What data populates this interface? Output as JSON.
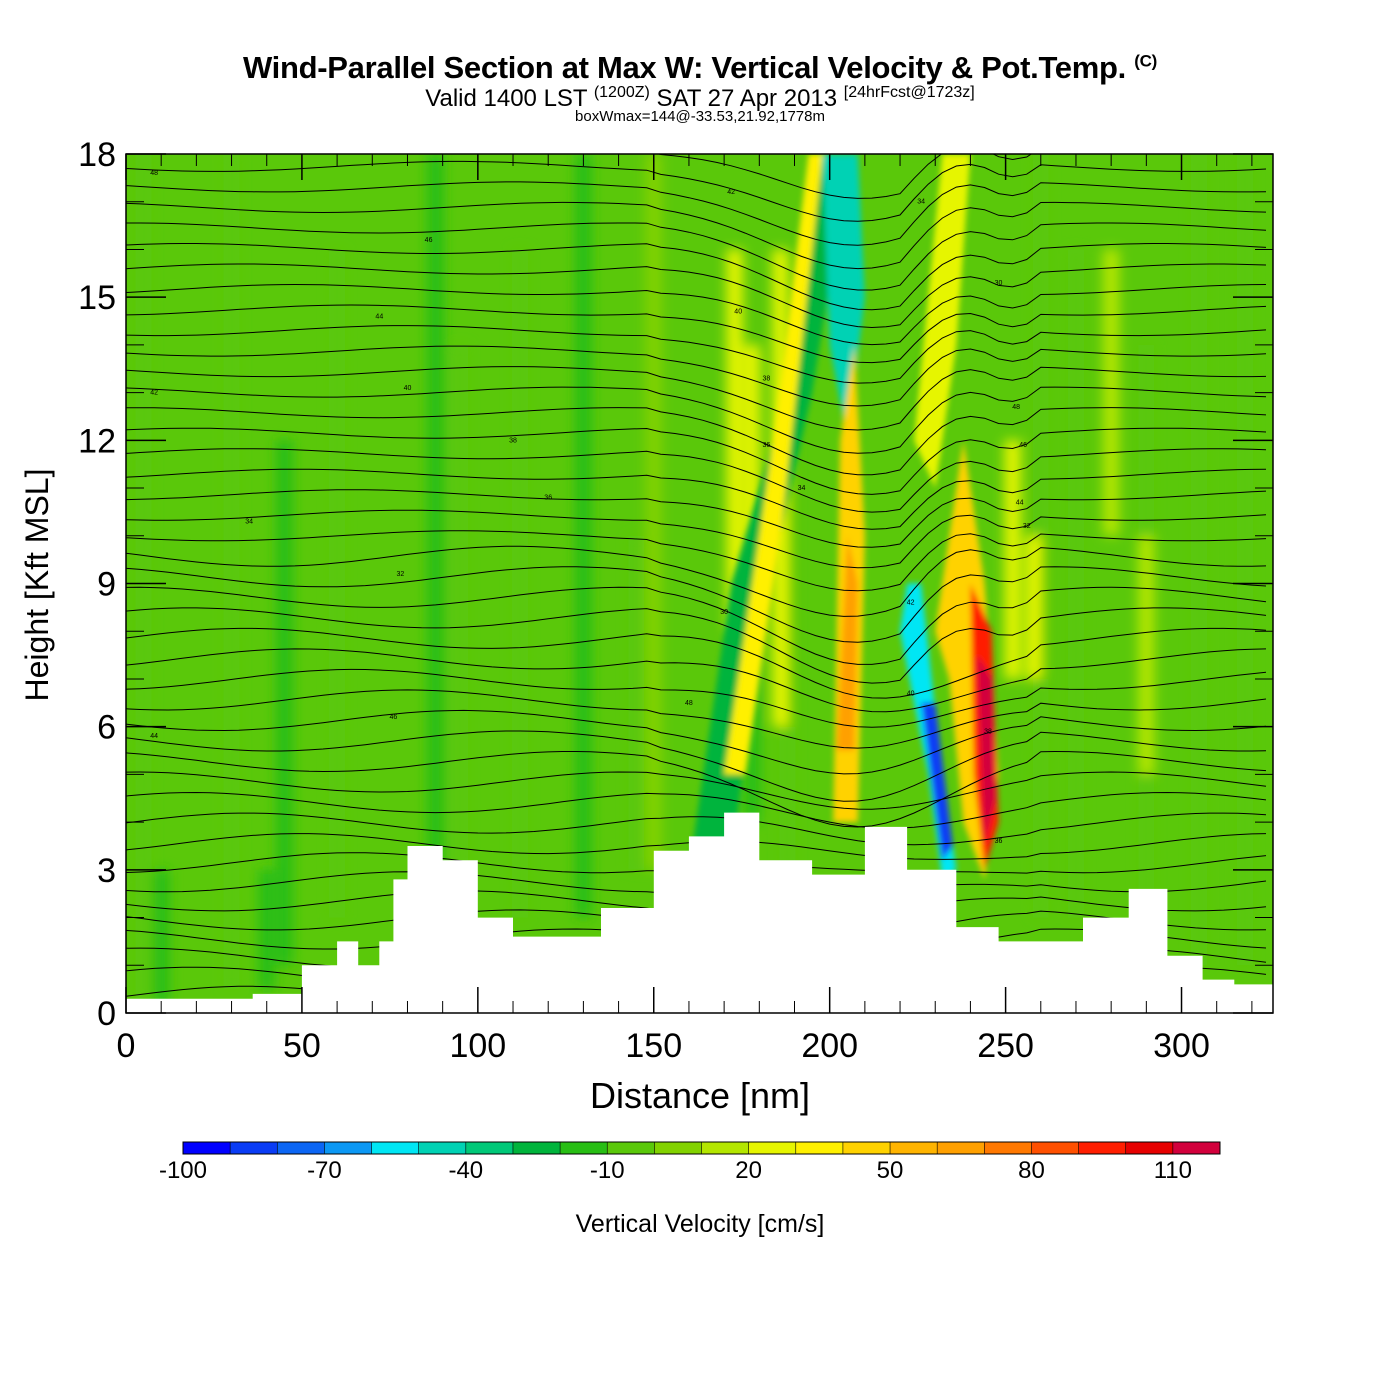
{
  "title": {
    "line1": "Wind-Parallel Section at Max W: Vertical Velocity & Pot.Temp.",
    "copyright": "(C)",
    "line2_a": "Valid 1400 LST",
    "line2_b": "(1200Z)",
    "line2_c": "SAT 27 Apr 2013",
    "line2_d": "[24hrFcst@1723z]",
    "line3": "boxWmax=144@-33.53,21.92,1778m"
  },
  "chart_data": {
    "type": "heatmap",
    "xlabel": "Distance [nm]",
    "ylabel": "Height [Kft MSL]",
    "xlim": [
      0,
      326
    ],
    "ylim": [
      0,
      18
    ],
    "xticks": [
      0,
      50,
      100,
      150,
      200,
      250,
      300
    ],
    "yticks": [
      0,
      3,
      6,
      9,
      12,
      15,
      18
    ],
    "terrain_kft": {
      "x": [
        0,
        20,
        36,
        50,
        60,
        66,
        72,
        76,
        80,
        90,
        100,
        110,
        125,
        135,
        150,
        160,
        170,
        180,
        195,
        210,
        222,
        236,
        248,
        260,
        272,
        285,
        296,
        306,
        315,
        326
      ],
      "y": [
        0.3,
        0.3,
        0.4,
        1.0,
        1.5,
        1.0,
        1.5,
        2.8,
        3.5,
        3.2,
        2.0,
        1.6,
        1.6,
        2.2,
        3.4,
        3.7,
        4.2,
        3.2,
        2.9,
        3.9,
        3.0,
        1.8,
        1.5,
        1.5,
        2.0,
        2.6,
        1.2,
        0.7,
        0.6,
        0.3
      ]
    },
    "colorbar": {
      "label": "Vertical Velocity [cm/s]",
      "tick_labels": [
        "-100",
        "-70",
        "-40",
        "-10",
        "20",
        "50",
        "80",
        "110"
      ],
      "tick_values": [
        -100,
        -70,
        -40,
        -10,
        20,
        50,
        80,
        110
      ],
      "min": -100,
      "max": 130,
      "step": 10,
      "colors": [
        "#0000ff",
        "#0a3cf5",
        "#0c66f4",
        "#0c98f4",
        "#00e6f4",
        "#00d2b4",
        "#00c878",
        "#00b43c",
        "#28be14",
        "#5ac80a",
        "#82d200",
        "#b4e600",
        "#e6f500",
        "#fff000",
        "#ffd200",
        "#ffb400",
        "#ffa000",
        "#ff7800",
        "#ff5000",
        "#ff1e00",
        "#e60000",
        "#d2003c"
      ]
    },
    "features": [
      {
        "name": "downdraft",
        "x": 232,
        "z": 4.5,
        "w_cm_s": -100
      },
      {
        "name": "updraft",
        "x": 246,
        "z": 6.5,
        "w_cm_s": 120
      },
      {
        "name": "updraft",
        "x": 205,
        "z": 6.5,
        "w_cm_s": 60
      },
      {
        "name": "updraft",
        "x": 238,
        "z": 9.0,
        "w_cm_s": 50
      },
      {
        "name": "downdraft",
        "x": 206,
        "z": 17.0,
        "w_cm_s": -40
      }
    ],
    "theta_contour_labels": [
      "48",
      "46",
      "44",
      "42",
      "40",
      "38",
      "36",
      "34",
      "32",
      "30"
    ]
  }
}
